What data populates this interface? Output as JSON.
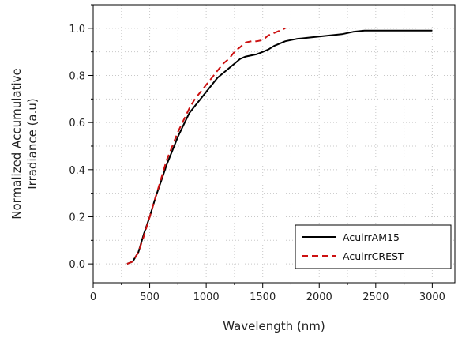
{
  "chart_data": {
    "type": "line",
    "title": "",
    "xlabel": "Wavelength (nm)",
    "ylabel_lines": [
      "Normalized Accumulative",
      "Irradiance (a.u)"
    ],
    "xlim": [
      0,
      3200
    ],
    "ylim": [
      -0.08,
      1.1
    ],
    "x_ticks": [
      0,
      500,
      1000,
      1500,
      2000,
      2500,
      3000
    ],
    "x_tick_labels": [
      "0",
      "500",
      "1000",
      "1500",
      "2000",
      "2500",
      "3000"
    ],
    "y_ticks": [
      0.0,
      0.2,
      0.4,
      0.6,
      0.8,
      1.0
    ],
    "y_tick_labels": [
      "0.0",
      "0.2",
      "0.4",
      "0.6",
      "0.8",
      "1.0"
    ],
    "grid": true,
    "legend_position": "bottom-right",
    "series": [
      {
        "name": "AculrrAM15",
        "color": "#000000",
        "style": "solid",
        "x": [
          300,
          350,
          400,
          450,
          500,
          550,
          600,
          650,
          700,
          750,
          800,
          850,
          900,
          950,
          1000,
          1050,
          1100,
          1150,
          1200,
          1250,
          1300,
          1350,
          1400,
          1450,
          1500,
          1550,
          1600,
          1650,
          1700,
          1750,
          1800,
          1900,
          2000,
          2100,
          2200,
          2300,
          2400,
          2500,
          2600,
          2800,
          3000
        ],
        "y": [
          0.0,
          0.01,
          0.05,
          0.13,
          0.2,
          0.28,
          0.35,
          0.42,
          0.48,
          0.54,
          0.59,
          0.64,
          0.67,
          0.7,
          0.73,
          0.76,
          0.79,
          0.81,
          0.83,
          0.85,
          0.87,
          0.88,
          0.885,
          0.89,
          0.9,
          0.91,
          0.925,
          0.935,
          0.945,
          0.95,
          0.955,
          0.96,
          0.965,
          0.97,
          0.975,
          0.985,
          0.99,
          0.99,
          0.99,
          0.99,
          0.99
        ]
      },
      {
        "name": "AculrrCREST",
        "color": "#cc1111",
        "style": "dashed",
        "x": [
          300,
          350,
          400,
          450,
          500,
          550,
          600,
          650,
          700,
          750,
          800,
          850,
          900,
          950,
          1000,
          1050,
          1100,
          1150,
          1200,
          1250,
          1300,
          1350,
          1400,
          1450,
          1500,
          1550,
          1600,
          1650,
          1700
        ],
        "y": [
          0.0,
          0.01,
          0.05,
          0.12,
          0.2,
          0.28,
          0.36,
          0.44,
          0.5,
          0.56,
          0.61,
          0.66,
          0.7,
          0.73,
          0.76,
          0.79,
          0.82,
          0.85,
          0.87,
          0.9,
          0.92,
          0.94,
          0.945,
          0.945,
          0.95,
          0.97,
          0.98,
          0.99,
          1.0
        ]
      }
    ]
  }
}
